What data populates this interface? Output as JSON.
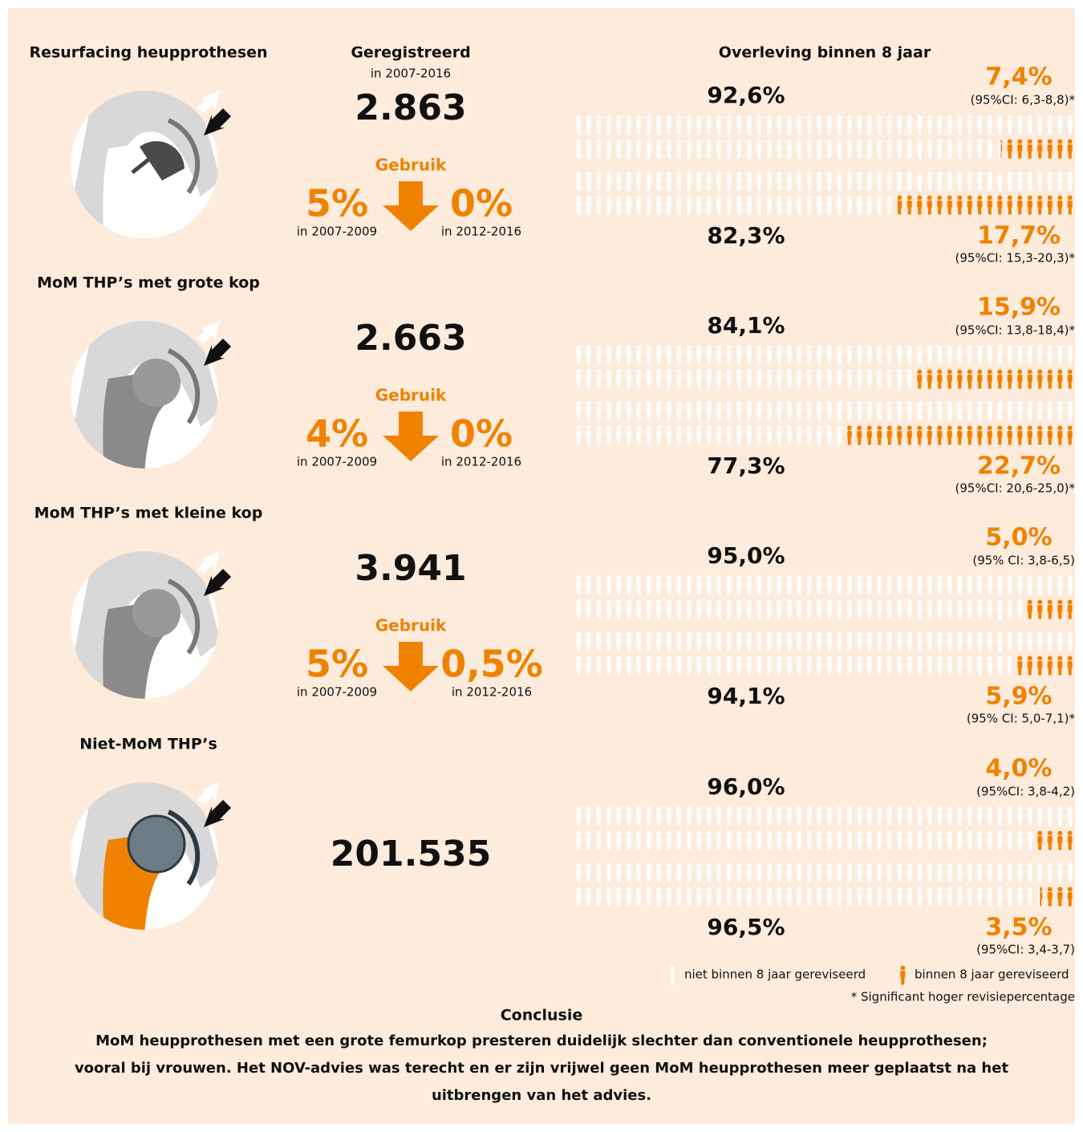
{
  "headers": {
    "registered": "Geregistreerd",
    "registered_period": "in 2007-2016",
    "survival": "Overleving binnen 8 jaar"
  },
  "sections": [
    {
      "title": "Resurfacing heupprothesen",
      "count": "2.863",
      "usage": {
        "label": "Gebruik",
        "before": "5%",
        "before_period": "in 2007-2009",
        "after": "0%",
        "after_period": "in 2012-2016"
      },
      "survival": [
        {
          "values": [
            92.6,
            7.4
          ],
          "value_labels": [
            "92,6%",
            "7,4%"
          ],
          "ci": "(95%CI: 6,3-8,8)*"
        },
        {
          "values": [
            82.3,
            17.7
          ],
          "value_labels": [
            "82,3%",
            "17,7%"
          ],
          "ci": "(95%CI: 15,3-20,3)*"
        }
      ]
    },
    {
      "title": "MoM THP’s met grote kop",
      "count": "2.663",
      "usage": {
        "label": "Gebruik",
        "before": "4%",
        "before_period": "in 2007-2009",
        "after": "0%",
        "after_period": "in 2012-2016"
      },
      "survival": [
        {
          "values": [
            84.1,
            15.9
          ],
          "value_labels": [
            "84,1%",
            "15,9%"
          ],
          "ci": "(95%CI: 13,8-18,4)*"
        },
        {
          "values": [
            77.3,
            22.7
          ],
          "value_labels": [
            "77,3%",
            "22,7%"
          ],
          "ci": "(95%CI: 20,6-25,0)*"
        }
      ]
    },
    {
      "title": "MoM THP’s met kleine kop",
      "count": "3.941",
      "usage": {
        "label": "Gebruik",
        "before": "5%",
        "before_period": "in 2007-2009",
        "after": "0,5%",
        "after_period": "in 2012-2016"
      },
      "survival": [
        {
          "values": [
            95.0,
            5.0
          ],
          "value_labels": [
            "95,0%",
            "5,0%"
          ],
          "ci": "(95% CI: 3,8-6,5)"
        },
        {
          "values": [
            94.1,
            5.9
          ],
          "value_labels": [
            "94,1%",
            "5,9%"
          ],
          "ci": "(95% CI: 5,0-7,1)*"
        }
      ]
    },
    {
      "title": "Niet-MoM THP’s",
      "count": "201.535",
      "survival": [
        {
          "values": [
            96.0,
            4.0
          ],
          "value_labels": [
            "96,0%",
            "4,0%"
          ],
          "ci": "(95%CI: 3,8-4,2)"
        },
        {
          "values": [
            96.5,
            3.5
          ],
          "value_labels": [
            "96,5%",
            "3,5%"
          ],
          "ci": "(95%CI: 3,4-3,7)"
        }
      ]
    }
  ],
  "legend": {
    "not_revised": "niet binnen 8 jaar gereviseerd",
    "revised": "binnen 8 jaar gereviseerd"
  },
  "footnote": "* Significant hoger revisiepercentage",
  "conclusion": {
    "title": "Conclusie",
    "lines": [
      "MoM heupprothesen met een grote femurkop presteren duidelijk slechter dan conventionele heupprothesen;",
      "vooral bij vrouwen. Het NOV-advies was terecht en er zijn vrijwel geen MoM heupprothesen meer geplaatst na het",
      "uitbrengen van het advies."
    ]
  }
}
